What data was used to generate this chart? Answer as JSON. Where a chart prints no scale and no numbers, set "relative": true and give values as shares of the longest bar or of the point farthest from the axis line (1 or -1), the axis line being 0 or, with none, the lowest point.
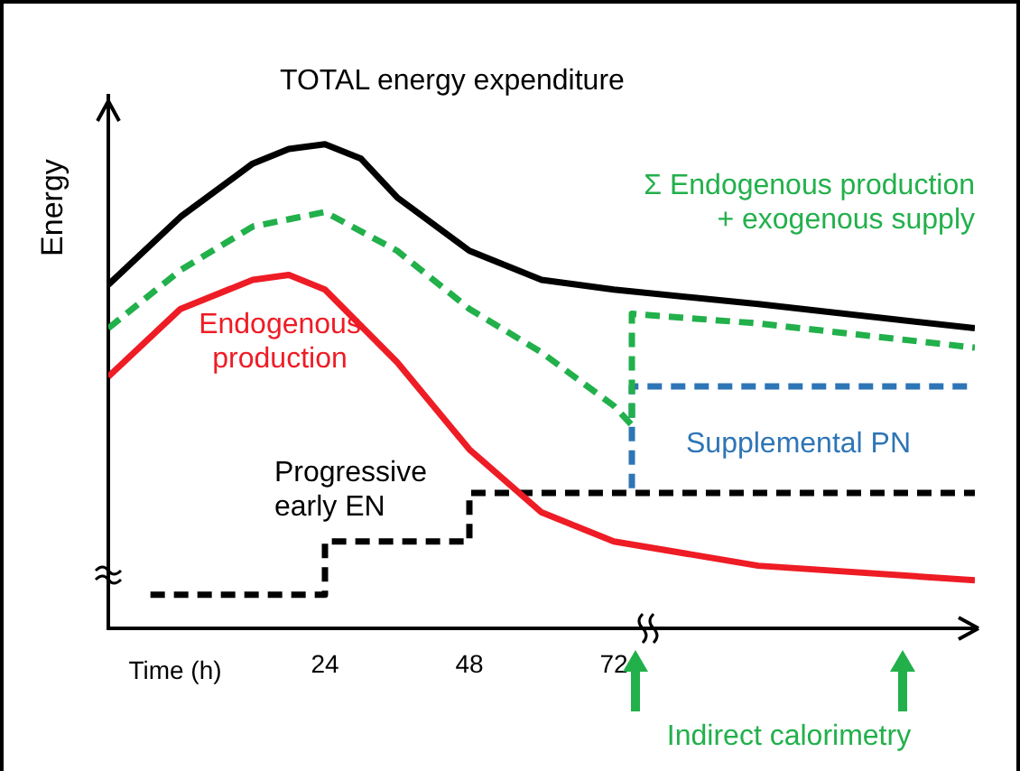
{
  "chart_data": {
    "type": "line",
    "relative": true,
    "ylabel": "Energy",
    "xlabel": "Time (h)",
    "xlim": [
      -12,
      132
    ],
    "xticks": [
      24,
      48,
      72
    ],
    "grid": false,
    "legend": false,
    "marker": "none",
    "annotations": [
      "Indirect calorimetry"
    ],
    "series": [
      {
        "name": "TOTAL energy expenditure",
        "color": "#000000",
        "line_style": "solid",
        "x": [
          -12,
          0,
          12,
          18,
          24,
          30,
          36,
          48,
          60,
          72,
          96,
          132
        ],
        "values": [
          0.71,
          0.85,
          0.96,
          0.99,
          1,
          0.97,
          0.89,
          0.78,
          0.72,
          0.7,
          0.67,
          0.62
        ]
      },
      {
        "name": "Σ Endogenous production\n+ exogenous supply",
        "color": "#22b04b",
        "line_style": "dashed",
        "x": [
          -12,
          0,
          12,
          24,
          36,
          48,
          60,
          72,
          75,
          75,
          96,
          132
        ],
        "values": [
          0.62,
          0.74,
          0.83,
          0.86,
          0.78,
          0.66,
          0.57,
          0.46,
          0.42,
          0.65,
          0.63,
          0.58
        ]
      },
      {
        "name": "Endogenous\nproduction",
        "color": "#ee1c25",
        "line_style": "solid",
        "x": [
          -12,
          0,
          12,
          18,
          24,
          36,
          48,
          60,
          72,
          96,
          132
        ],
        "values": [
          0.52,
          0.66,
          0.72,
          0.73,
          0.7,
          0.55,
          0.37,
          0.24,
          0.18,
          0.13,
          0.1
        ]
      },
      {
        "name": "Progressive\nearly EN",
        "type": "step",
        "color": "#000000",
        "line_style": "dashed",
        "x": [
          -5,
          24,
          48,
          132
        ],
        "values": [
          0.07,
          0.18,
          0.28,
          0.28
        ]
      },
      {
        "name": "Supplemental PN",
        "color": "#2e75b6",
        "line_style": "dashed",
        "x": [
          75,
          75,
          132
        ],
        "values": [
          0.29,
          0.5,
          0.5
        ]
      }
    ]
  }
}
